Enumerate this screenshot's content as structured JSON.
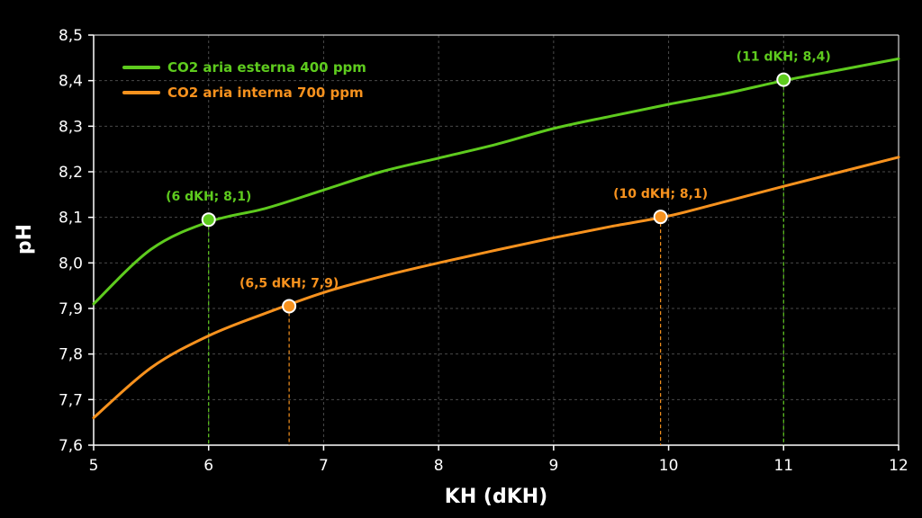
{
  "chart_data": {
    "type": "line",
    "xlabel": "KH (dKH)",
    "ylabel": "pH",
    "xlim": [
      5,
      12
    ],
    "ylim": [
      7.6,
      8.5
    ],
    "x_ticks": [
      "5",
      "6",
      "7",
      "8",
      "9",
      "10",
      "11",
      "12"
    ],
    "y_ticks": [
      "7,6",
      "7,7",
      "7,8",
      "7,9",
      "8,0",
      "8,1",
      "8,2",
      "8,3",
      "8,4",
      "8,5"
    ],
    "grid": true,
    "legend_position": "top-left",
    "series": [
      {
        "name": "CO2  aria esterna 400 ppm",
        "color": "#5ecb1e",
        "x": [
          5.0,
          5.5,
          6.0,
          6.5,
          7.0,
          7.5,
          8.0,
          8.5,
          9.0,
          9.5,
          10.0,
          10.5,
          11.0,
          11.5,
          12.0
        ],
        "y": [
          7.91,
          8.03,
          8.09,
          8.12,
          8.16,
          8.2,
          8.23,
          8.26,
          8.295,
          8.322,
          8.348,
          8.372,
          8.4,
          8.424,
          8.448
        ]
      },
      {
        "name": "CO2  aria interna 700 ppm",
        "color": "#f7921e",
        "x": [
          5.0,
          5.5,
          6.0,
          6.5,
          7.0,
          7.5,
          8.0,
          8.5,
          9.0,
          9.5,
          10.0,
          10.5,
          11.0,
          11.5,
          12.0
        ],
        "y": [
          7.66,
          7.77,
          7.84,
          7.89,
          7.935,
          7.97,
          8.0,
          8.028,
          8.055,
          8.08,
          8.103,
          8.135,
          8.168,
          8.2,
          8.232
        ]
      }
    ],
    "points": [
      {
        "x": 6.0,
        "y": 8.095,
        "label": "(6 dKH; 8,1)",
        "series": 0
      },
      {
        "x": 11.0,
        "y": 8.402,
        "label": "(11 dKH; 8,4)",
        "series": 0
      },
      {
        "x": 6.7,
        "y": 7.905,
        "label": "(6,5 dKH; 7,9)",
        "series": 1
      },
      {
        "x": 9.93,
        "y": 8.101,
        "label": "(10 dKH; 8,1)",
        "series": 1
      }
    ]
  }
}
